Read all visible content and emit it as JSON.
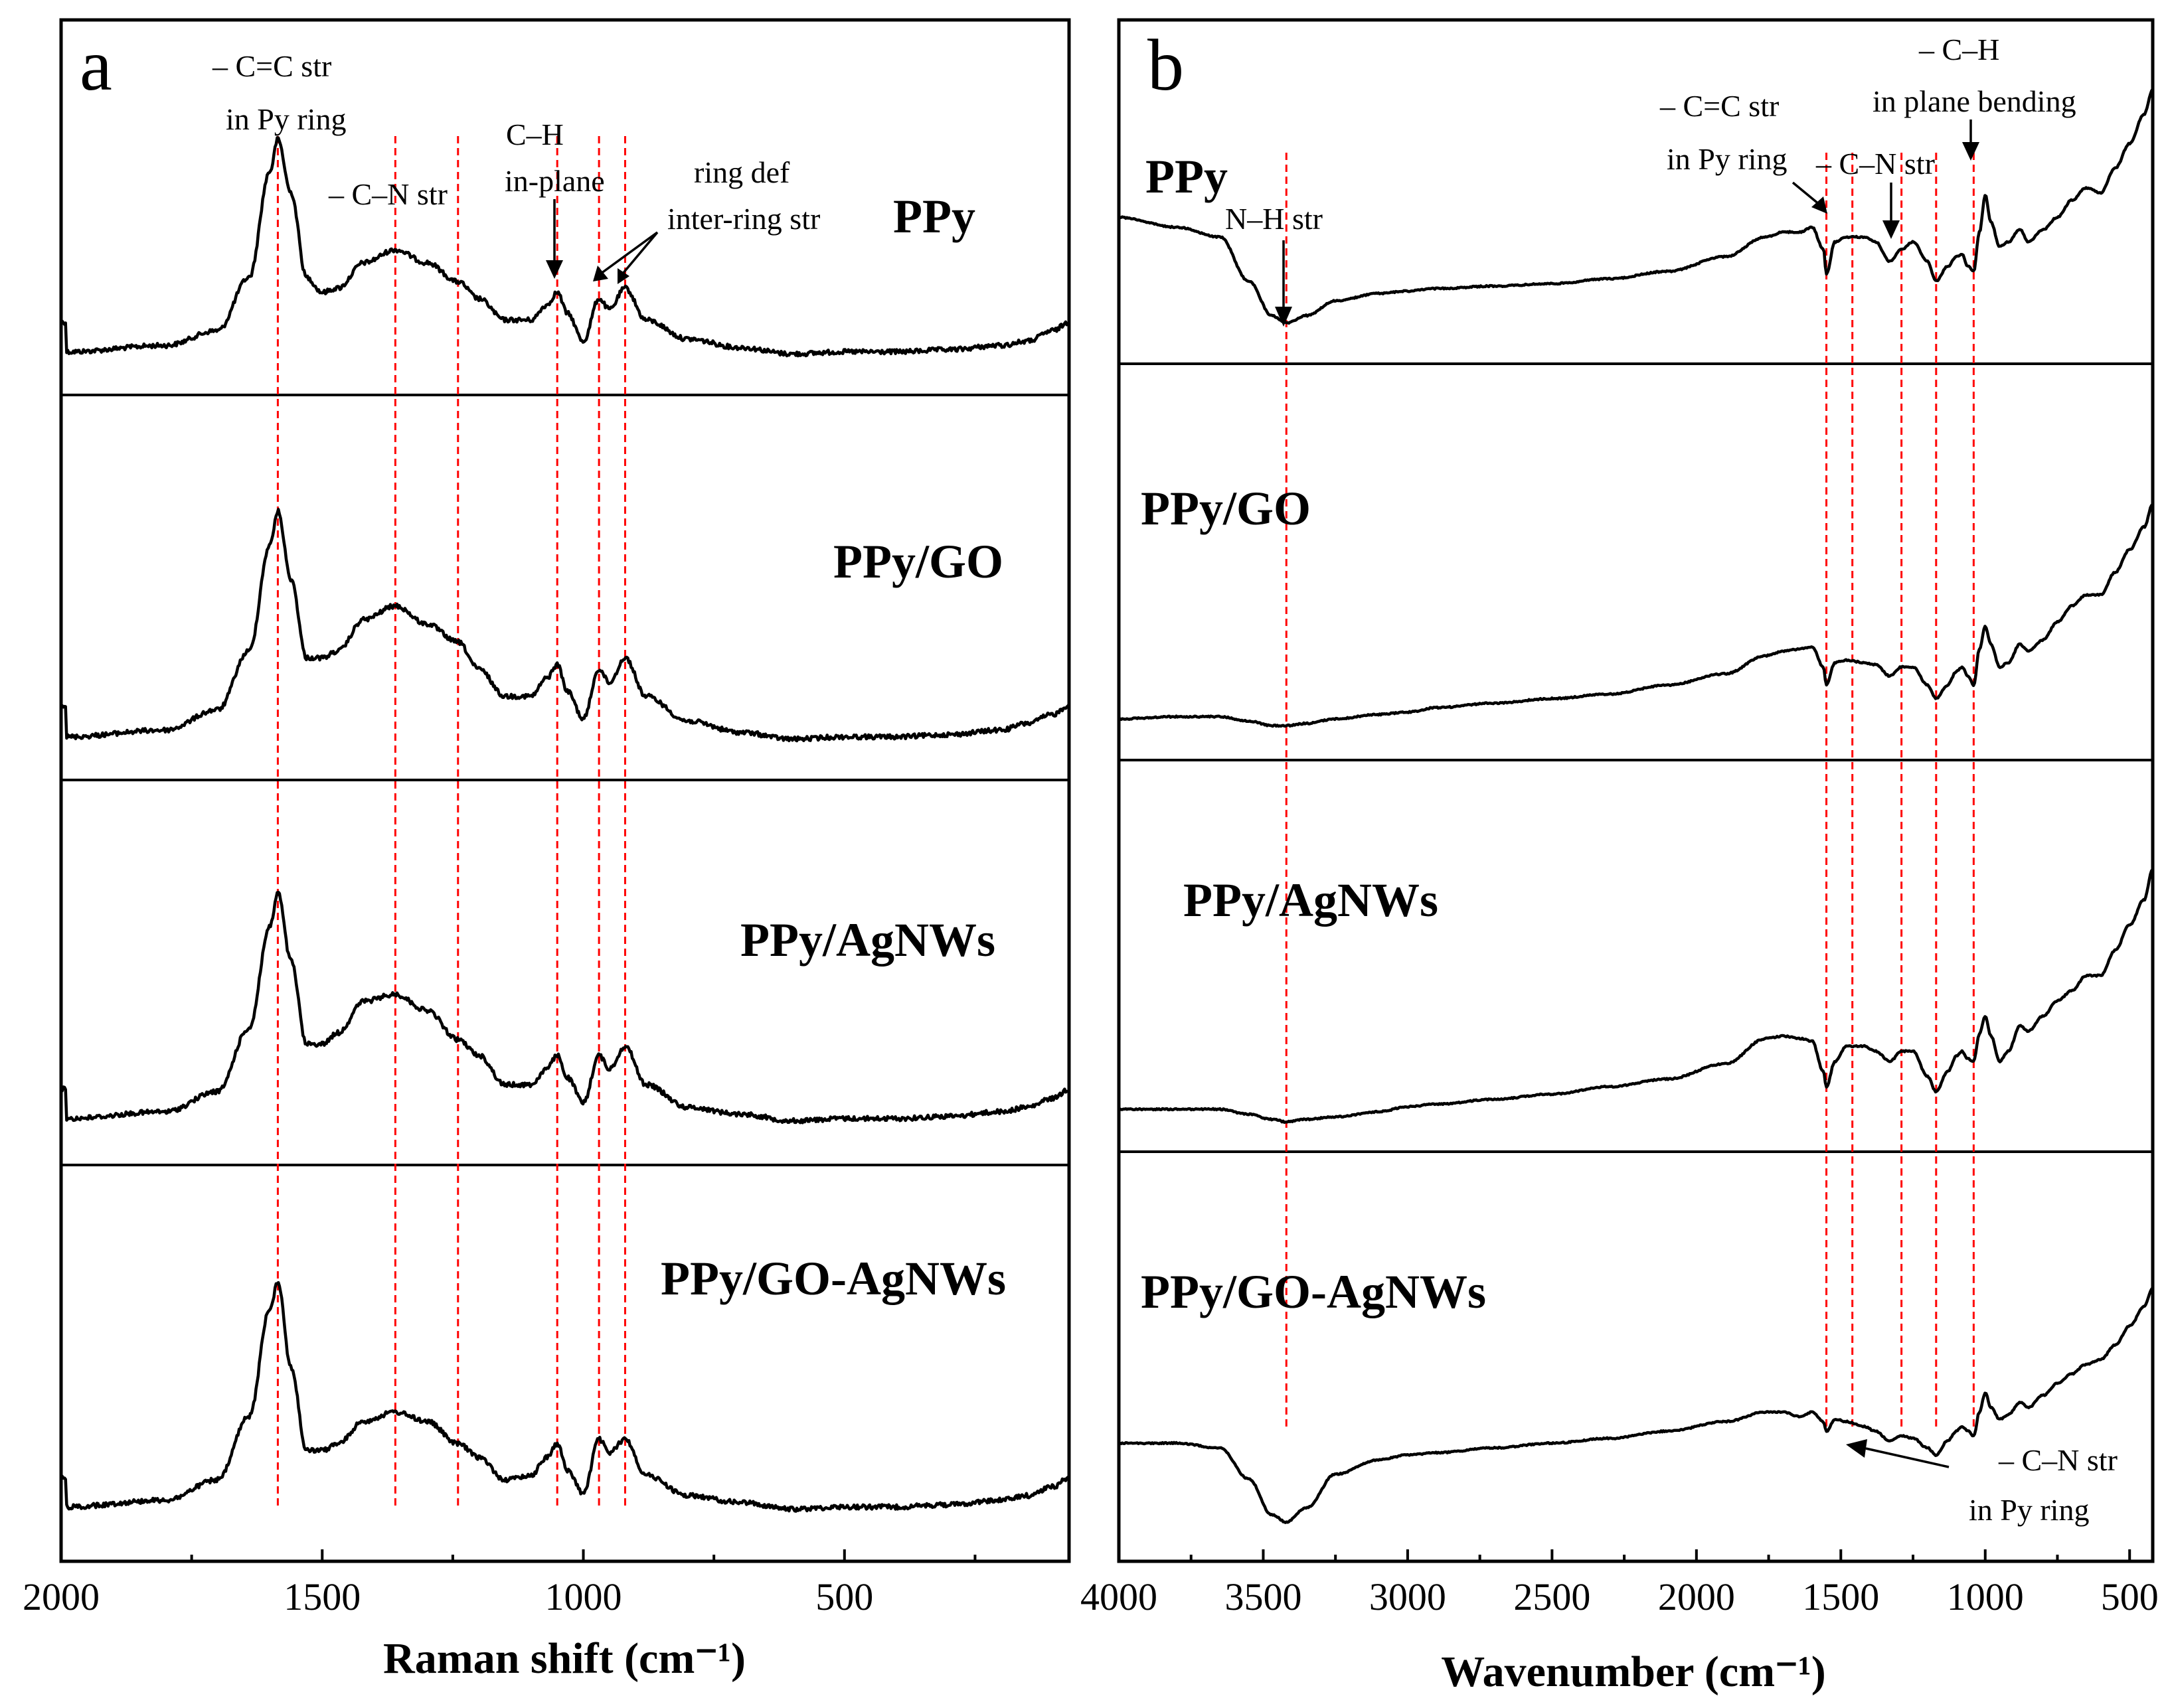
{
  "panels": [
    {
      "tag": "a",
      "axis_title": "Raman shift (cm⁻¹)",
      "ticks": [
        "2000",
        "1500",
        "1000",
        "500"
      ],
      "samples": [
        "PPy",
        "PPy/GO",
        "PPy/AgNWs",
        "PPy/GO-AgNWs"
      ],
      "annotations": [
        [
          "– C=C str",
          "in Py ring"
        ],
        [
          "– C–N str"
        ],
        [
          "C–H",
          "in-plane"
        ],
        [
          "ring def",
          "inter-ring str"
        ]
      ]
    },
    {
      "tag": "b",
      "axis_title": "Wavenumber (cm⁻¹)",
      "ticks": [
        "4000",
        "3500",
        "3000",
        "2500",
        "2000",
        "1500",
        "1000",
        "500"
      ],
      "samples": [
        "PPy",
        "PPy/GO",
        "PPy/AgNWs",
        "PPy/GO-AgNWs"
      ],
      "annotations": [
        [
          "N–H str"
        ],
        [
          "– C=C str",
          "in Py ring"
        ],
        [
          "– C–N str"
        ],
        [
          "– C–H",
          "in plane bending"
        ],
        [
          "– C–N str",
          "in Py ring"
        ]
      ]
    }
  ],
  "chart_data": [
    {
      "type": "line",
      "title": "a",
      "xlabel": "Raman shift (cm-1)",
      "ylabel": "",
      "xlim": [
        2000,
        70
      ],
      "x_reversed": true,
      "stacked_panels": [
        "PPy",
        "PPy/GO",
        "PPy/AgNWs",
        "PPy/GO-AgNWs"
      ],
      "marker_lines": [
        1585,
        1360,
        1240,
        1050,
        970,
        920
      ],
      "series": [
        {
          "name": "PPy",
          "x": [
            1990,
            1800,
            1700,
            1640,
            1600,
            1585,
            1560,
            1530,
            1500,
            1470,
            1420,
            1360,
            1300,
            1240,
            1200,
            1150,
            1100,
            1070,
            1050,
            1030,
            1000,
            970,
            950,
            920,
            880,
            800,
            700,
            600,
            500,
            400,
            300,
            200,
            150,
            100,
            70
          ],
          "values": [
            0.0,
            0.03,
            0.1,
            0.35,
            0.85,
            1.0,
            0.75,
            0.35,
            0.28,
            0.3,
            0.42,
            0.48,
            0.42,
            0.33,
            0.25,
            0.15,
            0.15,
            0.22,
            0.28,
            0.18,
            0.05,
            0.25,
            0.2,
            0.3,
            0.15,
            0.06,
            0.02,
            -0.01,
            0.0,
            0.0,
            0.01,
            0.03,
            0.05,
            0.1,
            0.14
          ]
        },
        {
          "name": "PPy/GO",
          "x": [
            1990,
            1800,
            1700,
            1640,
            1600,
            1585,
            1560,
            1530,
            1500,
            1470,
            1420,
            1360,
            1300,
            1240,
            1200,
            1150,
            1100,
            1070,
            1050,
            1030,
            1000,
            970,
            950,
            920,
            880,
            800,
            700,
            600,
            500,
            400,
            300,
            200,
            150,
            100,
            70
          ],
          "values": [
            0.0,
            0.03,
            0.12,
            0.38,
            0.85,
            1.0,
            0.7,
            0.35,
            0.35,
            0.38,
            0.52,
            0.58,
            0.5,
            0.42,
            0.3,
            0.18,
            0.18,
            0.26,
            0.32,
            0.2,
            0.08,
            0.3,
            0.24,
            0.35,
            0.18,
            0.07,
            0.02,
            -0.01,
            0.0,
            0.0,
            0.01,
            0.03,
            0.06,
            0.1,
            0.14
          ]
        },
        {
          "name": "PPy/AgNWs",
          "x": [
            1990,
            1800,
            1700,
            1640,
            1600,
            1585,
            1560,
            1530,
            1500,
            1470,
            1420,
            1360,
            1300,
            1240,
            1200,
            1150,
            1100,
            1070,
            1050,
            1030,
            1000,
            970,
            950,
            920,
            880,
            800,
            700,
            600,
            500,
            400,
            300,
            200,
            150,
            100,
            70
          ],
          "values": [
            0.0,
            0.03,
            0.12,
            0.4,
            0.85,
            1.0,
            0.7,
            0.33,
            0.33,
            0.38,
            0.52,
            0.55,
            0.48,
            0.35,
            0.28,
            0.15,
            0.15,
            0.22,
            0.28,
            0.18,
            0.07,
            0.28,
            0.22,
            0.32,
            0.15,
            0.05,
            0.02,
            -0.01,
            0.0,
            0.0,
            0.01,
            0.03,
            0.05,
            0.09,
            0.13
          ]
        },
        {
          "name": "PPy/GO-AgNWs",
          "x": [
            1990,
            1800,
            1700,
            1640,
            1600,
            1585,
            1560,
            1530,
            1500,
            1470,
            1420,
            1360,
            1300,
            1240,
            1200,
            1150,
            1100,
            1070,
            1050,
            1030,
            1000,
            970,
            950,
            920,
            880,
            800,
            700,
            600,
            500,
            400,
            300,
            200,
            150,
            100,
            70
          ],
          "values": [
            0.0,
            0.03,
            0.12,
            0.4,
            0.88,
            1.0,
            0.62,
            0.25,
            0.25,
            0.28,
            0.38,
            0.42,
            0.38,
            0.28,
            0.22,
            0.12,
            0.14,
            0.22,
            0.28,
            0.16,
            0.06,
            0.3,
            0.24,
            0.3,
            0.14,
            0.05,
            0.02,
            -0.01,
            0.0,
            0.0,
            0.01,
            0.03,
            0.05,
            0.09,
            0.13
          ]
        }
      ]
    },
    {
      "type": "line",
      "title": "b",
      "xlabel": "Wavenumber (cm-1)",
      "ylabel": "",
      "xlim": [
        4000,
        420
      ],
      "x_reversed": true,
      "stacked_panels": [
        "PPy",
        "PPy/GO",
        "PPy/AgNWs",
        "PPy/GO-AgNWs"
      ],
      "marker_lines": [
        3420,
        1550,
        1460,
        1290,
        1170,
        1040
      ],
      "series": [
        {
          "name": "PPy",
          "x": [
            4000,
            3800,
            3650,
            3550,
            3470,
            3420,
            3350,
            3250,
            3100,
            3000,
            2900,
            2700,
            2500,
            2300,
            2100,
            1900,
            1760,
            1700,
            1640,
            1600,
            1560,
            1550,
            1520,
            1480,
            1420,
            1380,
            1330,
            1290,
            1250,
            1200,
            1170,
            1130,
            1100,
            1080,
            1060,
            1040,
            1020,
            1000,
            980,
            950,
            920,
            880,
            850,
            800,
            750,
            700,
            650,
            600,
            550,
            500,
            450,
            420
          ],
          "values": [
            0.48,
            0.44,
            0.4,
            0.22,
            0.08,
            0.05,
            0.08,
            0.14,
            0.17,
            0.18,
            0.19,
            0.2,
            0.21,
            0.23,
            0.26,
            0.32,
            0.4,
            0.42,
            0.42,
            0.44,
            0.35,
            0.25,
            0.38,
            0.4,
            0.4,
            0.38,
            0.3,
            0.35,
            0.38,
            0.3,
            0.22,
            0.28,
            0.32,
            0.33,
            0.28,
            0.26,
            0.42,
            0.57,
            0.46,
            0.36,
            0.38,
            0.43,
            0.38,
            0.43,
            0.48,
            0.55,
            0.6,
            0.58,
            0.68,
            0.78,
            0.9,
            1.0
          ]
        },
        {
          "name": "PPy/GO",
          "x": [
            4000,
            3800,
            3650,
            3550,
            3470,
            3420,
            3350,
            3250,
            3100,
            3000,
            2900,
            2700,
            2500,
            2300,
            2100,
            1900,
            1760,
            1700,
            1640,
            1600,
            1560,
            1550,
            1520,
            1480,
            1420,
            1380,
            1330,
            1290,
            1250,
            1200,
            1170,
            1130,
            1100,
            1080,
            1060,
            1040,
            1020,
            1000,
            980,
            950,
            920,
            880,
            850,
            800,
            750,
            700,
            650,
            600,
            550,
            500,
            450,
            420
          ],
          "values": [
            0.05,
            0.06,
            0.06,
            0.04,
            0.02,
            0.02,
            0.03,
            0.05,
            0.07,
            0.08,
            0.1,
            0.12,
            0.14,
            0.16,
            0.2,
            0.25,
            0.33,
            0.35,
            0.36,
            0.37,
            0.28,
            0.2,
            0.3,
            0.31,
            0.3,
            0.29,
            0.24,
            0.28,
            0.28,
            0.2,
            0.14,
            0.2,
            0.26,
            0.28,
            0.24,
            0.2,
            0.36,
            0.46,
            0.38,
            0.28,
            0.3,
            0.38,
            0.35,
            0.4,
            0.48,
            0.55,
            0.6,
            0.6,
            0.7,
            0.8,
            0.9,
            1.0
          ]
        },
        {
          "name": "PPy/AgNWs",
          "x": [
            4000,
            3800,
            3650,
            3550,
            3470,
            3420,
            3350,
            3250,
            3100,
            3000,
            2900,
            2700,
            2500,
            2300,
            2100,
            1900,
            1760,
            1700,
            1640,
            1600,
            1560,
            1550,
            1520,
            1480,
            1420,
            1380,
            1330,
            1290,
            1250,
            1200,
            1170,
            1130,
            1100,
            1080,
            1060,
            1040,
            1020,
            1000,
            980,
            950,
            920,
            880,
            850,
            800,
            750,
            700,
            650,
            600,
            550,
            500,
            450,
            420
          ],
          "values": [
            0.05,
            0.05,
            0.05,
            0.03,
            0.01,
            0.0,
            0.01,
            0.02,
            0.04,
            0.06,
            0.07,
            0.09,
            0.11,
            0.14,
            0.17,
            0.23,
            0.33,
            0.34,
            0.33,
            0.32,
            0.2,
            0.14,
            0.24,
            0.3,
            0.3,
            0.28,
            0.24,
            0.28,
            0.28,
            0.18,
            0.12,
            0.2,
            0.26,
            0.28,
            0.25,
            0.24,
            0.35,
            0.42,
            0.34,
            0.24,
            0.28,
            0.38,
            0.36,
            0.42,
            0.48,
            0.52,
            0.58,
            0.58,
            0.68,
            0.78,
            0.88,
            1.0
          ]
        },
        {
          "name": "PPy/GO-AgNWs",
          "x": [
            4000,
            3800,
            3650,
            3550,
            3470,
            3420,
            3350,
            3250,
            3100,
            3000,
            2900,
            2700,
            2500,
            2300,
            2100,
            1900,
            1760,
            1700,
            1640,
            1600,
            1560,
            1550,
            1520,
            1480,
            1420,
            1380,
            1330,
            1290,
            1250,
            1200,
            1170,
            1130,
            1100,
            1080,
            1060,
            1040,
            1020,
            1000,
            980,
            950,
            920,
            880,
            850,
            800,
            750,
            700,
            650,
            600,
            550,
            500,
            450,
            420
          ],
          "values": [
            0.35,
            0.35,
            0.33,
            0.2,
            0.05,
            0.02,
            0.08,
            0.22,
            0.28,
            0.3,
            0.31,
            0.33,
            0.35,
            0.37,
            0.4,
            0.44,
            0.48,
            0.48,
            0.46,
            0.48,
            0.44,
            0.4,
            0.45,
            0.44,
            0.42,
            0.4,
            0.36,
            0.38,
            0.37,
            0.33,
            0.3,
            0.36,
            0.4,
            0.42,
            0.4,
            0.38,
            0.48,
            0.56,
            0.5,
            0.45,
            0.47,
            0.52,
            0.5,
            0.55,
            0.6,
            0.64,
            0.68,
            0.7,
            0.76,
            0.84,
            0.92,
            1.0
          ]
        }
      ]
    }
  ]
}
